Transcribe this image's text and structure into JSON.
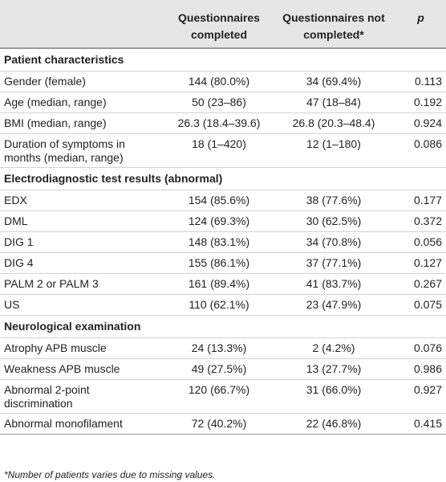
{
  "header": {
    "col1": "",
    "col2": "Questionnaires completed",
    "col3": "Questionnaires not completed*",
    "col4": "p"
  },
  "sections": [
    {
      "title": "Patient characteristics",
      "rows": [
        {
          "label": "Gender (female)",
          "completed": "144 (80.0%)",
          "not_completed": "34 (69.4%)",
          "p": "0.113"
        },
        {
          "label": "Age (median, range)",
          "completed": "50 (23–86)",
          "not_completed": "47 (18–84)",
          "p": "0.192"
        },
        {
          "label": "BMI (median, range)",
          "completed": "26.3 (18.4–39.6)",
          "not_completed": "26.8 (20.3–48.4)",
          "p": "0.924"
        },
        {
          "label": "Duration of symptoms in months (median, range)",
          "completed": "18 (1–420)",
          "not_completed": "12 (1–180)",
          "p": "0.086"
        }
      ]
    },
    {
      "title": "Electrodiagnostic test results (abnormal)",
      "rows": [
        {
          "label": "EDX",
          "completed": "154 (85.6%)",
          "not_completed": "38 (77.6%)",
          "p": "0.177"
        },
        {
          "label": "DML",
          "completed": "124 (69.3%)",
          "not_completed": "30 (62.5%)",
          "p": "0.372"
        },
        {
          "label": "DIG 1",
          "completed": "148 (83.1%)",
          "not_completed": "34 (70.8%)",
          "p": "0.056"
        },
        {
          "label": "DIG 4",
          "completed": "155 (86.1%)",
          "not_completed": "37 (77.1%)",
          "p": "0.127"
        },
        {
          "label": "PALM 2 or PALM 3",
          "completed": "161 (89.4%)",
          "not_completed": "41 (83.7%)",
          "p": "0.267"
        },
        {
          "label": "US",
          "completed": "110 (62.1%)",
          "not_completed": "23 (47.9%)",
          "p": "0.075"
        }
      ]
    },
    {
      "title": "Neurological examination",
      "rows": [
        {
          "label": "Atrophy APB muscle",
          "completed": "24 (13.3%)",
          "not_completed": "2 (4.2%)",
          "p": "0.076"
        },
        {
          "label": "Weakness APB muscle",
          "completed": "49 (27.5%)",
          "not_completed": "13 (27.7%)",
          "p": "0.986"
        },
        {
          "label": "Abnormal 2-point discrimination",
          "completed": "120 (66.7%)",
          "not_completed": "31 (66.0%)",
          "p": "0.927"
        },
        {
          "label": "Abnormal monofilament",
          "completed": "72 (40.2%)",
          "not_completed": "22 (46.8%)",
          "p": "0.415"
        }
      ]
    }
  ],
  "footnote": "*Number of patients varies due to missing values."
}
